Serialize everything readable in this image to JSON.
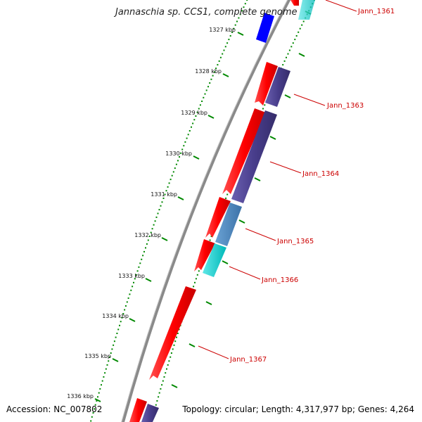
{
  "title": "Jannaschia sp. CCS1, complete genome",
  "footer": {
    "accession": "Accession: NC_007802",
    "topology": "Topology: circular; Length: 4,317,977 bp; Genes: 4,264"
  },
  "kbp_ticks": [
    "1327 kbp",
    "1328 kbp",
    "1329 kbp",
    "1330 kbp",
    "1331 kbp",
    "1332 kbp",
    "1333 kbp",
    "1334 kbp",
    "1335 kbp",
    "1336 kbp"
  ],
  "gene_labels": [
    "Jann_1361",
    "Jann_1363",
    "Jann_1364",
    "Jann_1365",
    "Jann_1366",
    "Jann_1367"
  ],
  "colors": {
    "backbone": "#8a8a8a",
    "tick_green": "#008800",
    "gene_red": "#ff0000",
    "gene_purple": "#483d8b",
    "gene_blue": "#0000ff",
    "gene_cyan": "#00cccc",
    "gene_steel": "#4682b4",
    "label_red": "#cc0000"
  }
}
